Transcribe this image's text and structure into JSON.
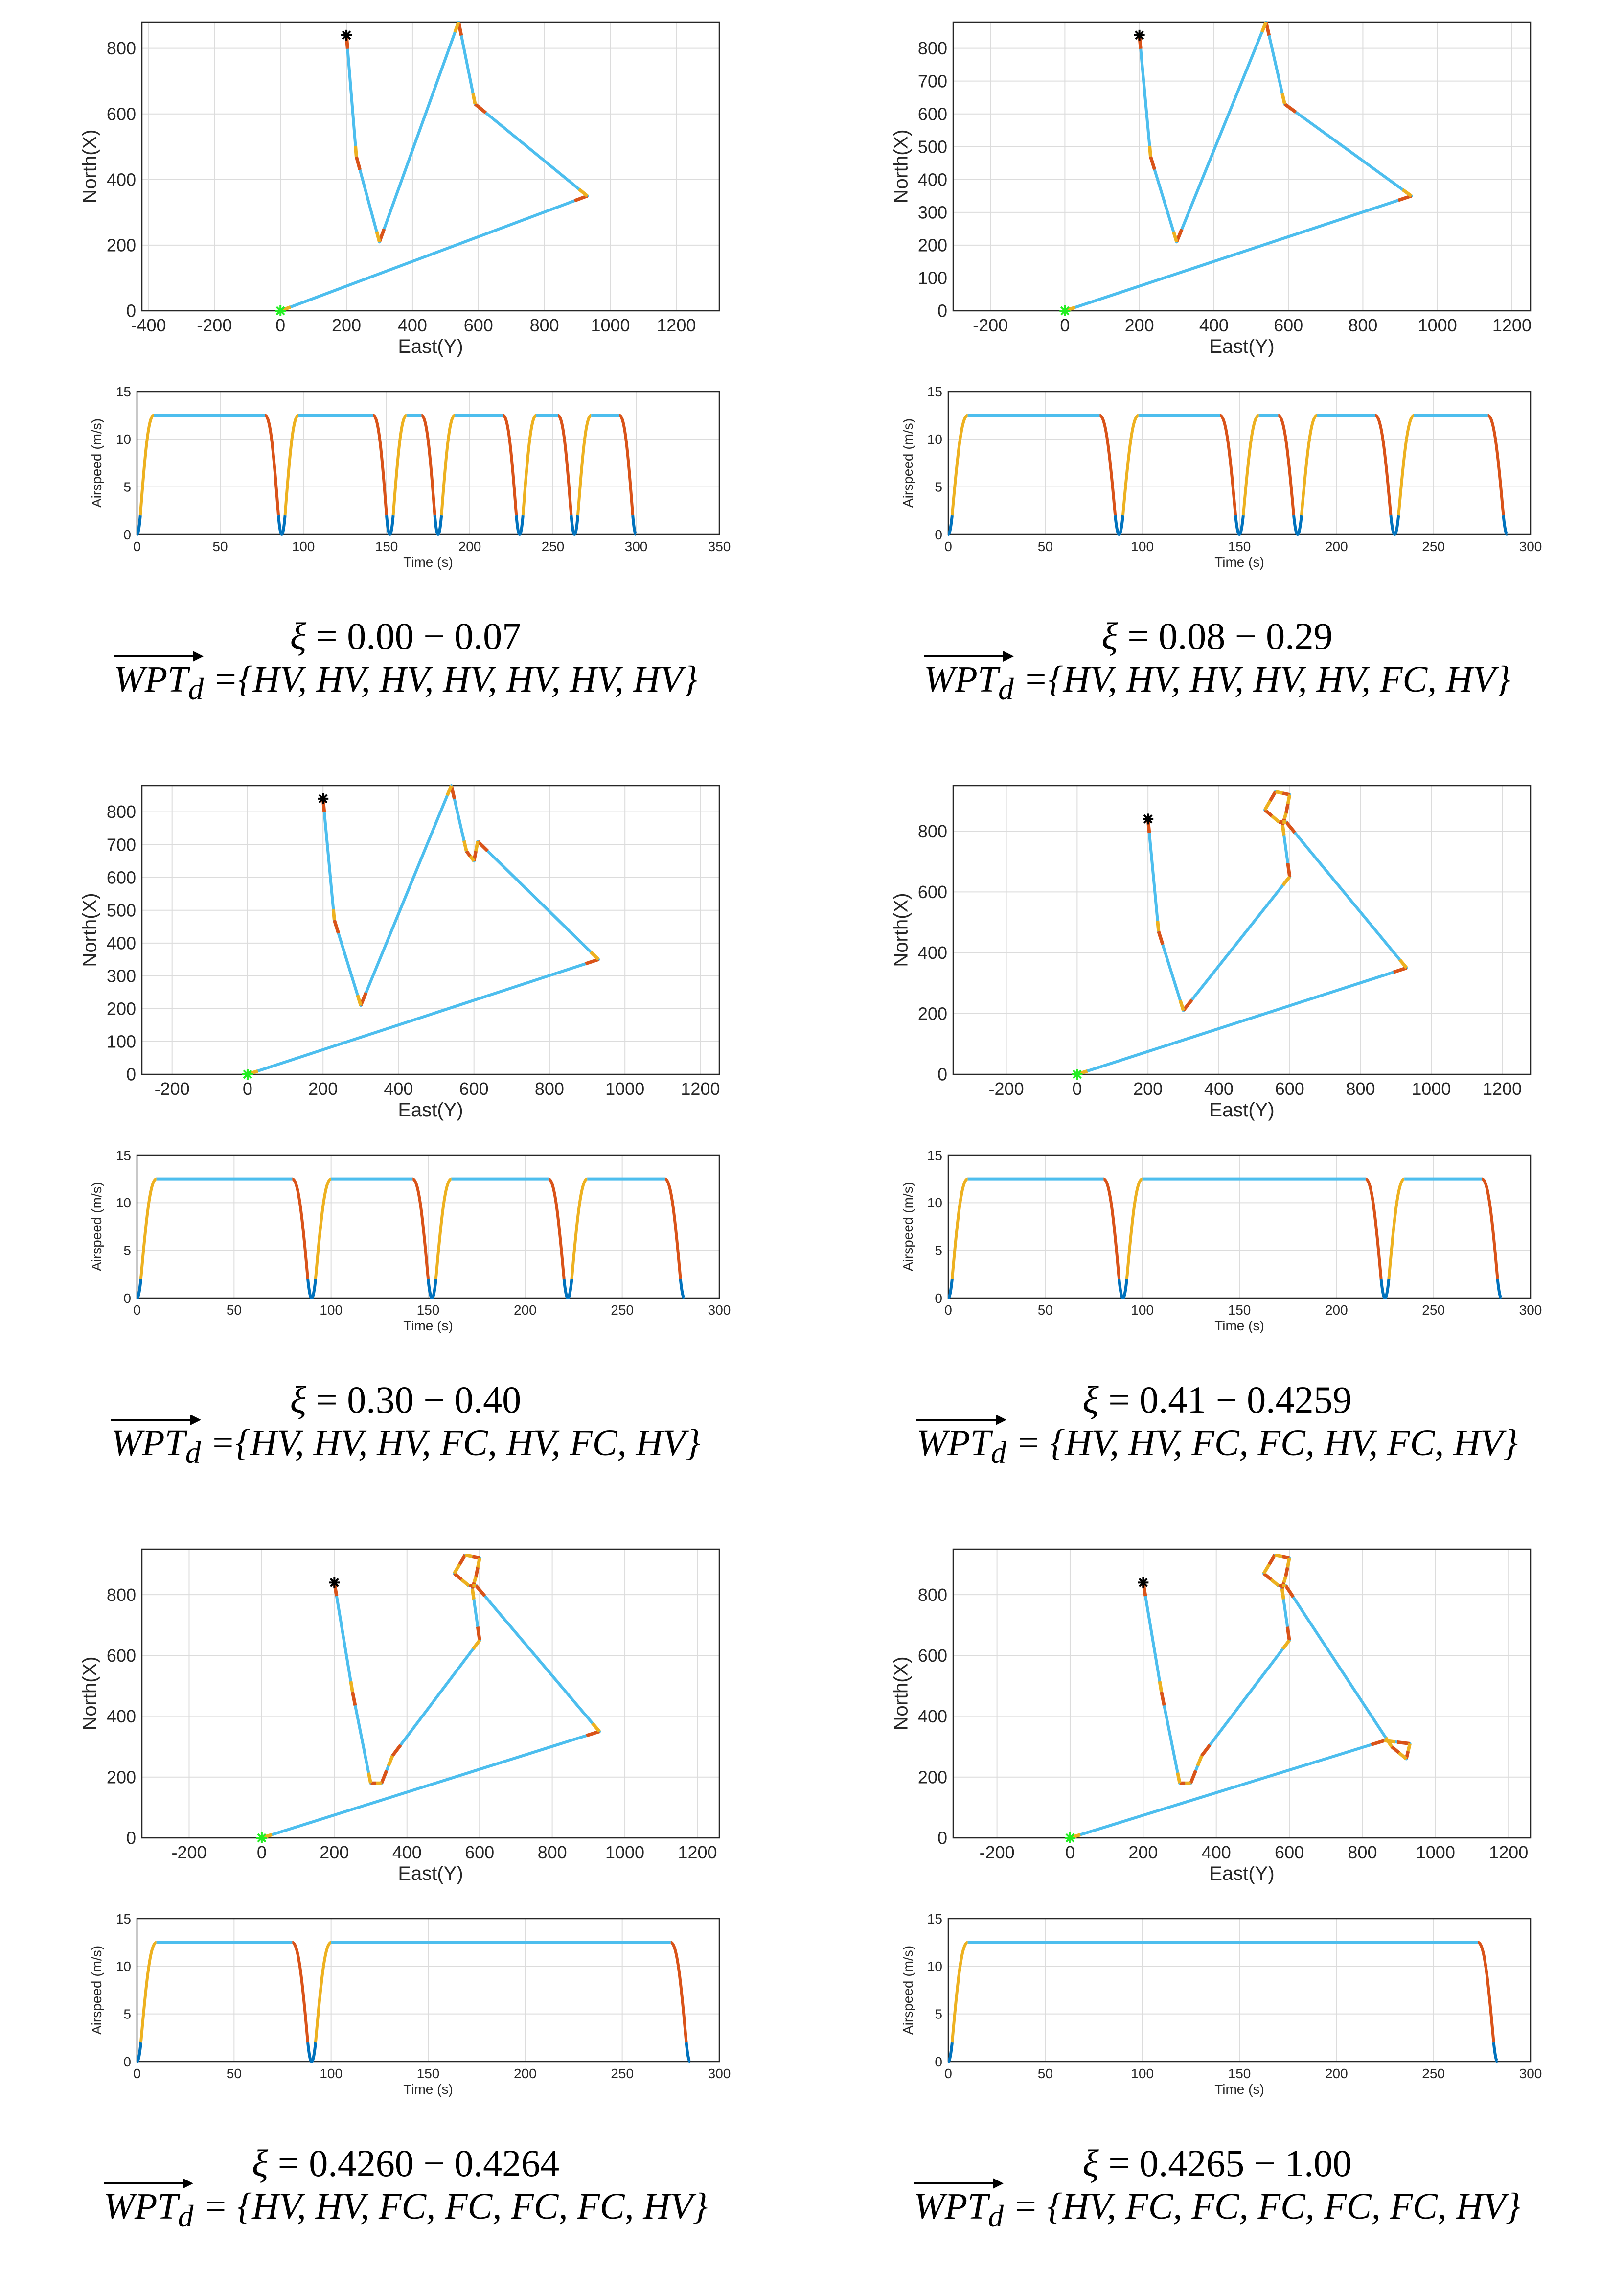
{
  "colors": {
    "path": "#4DBEEE",
    "accel": "#EDB120",
    "decel": "#D95319",
    "low": "#0072BD",
    "start": "#22EE22",
    "target": "#000000"
  },
  "chart_data": [
    {
      "type": "line",
      "caption": {
        "xi_symbol": "ξ",
        "xi_range": "= 0.00 − 0.07",
        "wpt_base": "WPT",
        "wpt_sub": "d",
        "wpt_value": "={HV, HV, HV, HV, HV, HV, HV}"
      },
      "track": {
        "xlabel": "East(Y)",
        "ylabel": "North(X)",
        "xlim": [
          -420,
          1330
        ],
        "ylim": [
          0,
          880
        ],
        "xticks": [
          -400,
          -200,
          0,
          200,
          400,
          600,
          800,
          1000,
          1200
        ],
        "yticks": [
          0,
          200,
          400,
          600,
          800
        ],
        "path": [
          [
            0,
            0
          ],
          [
            930,
            350
          ],
          [
            590,
            630
          ],
          [
            540,
            880
          ],
          [
            300,
            210
          ],
          [
            230,
            470
          ],
          [
            200,
            840
          ]
        ],
        "start": [
          0,
          0
        ],
        "target": [
          200,
          840
        ]
      },
      "speed": {
        "xlabel": "Time (s)",
        "ylabel": "Airspeed (m/s)",
        "xlim": [
          0,
          350
        ],
        "ylim": [
          0,
          15
        ],
        "xticks": [
          0,
          50,
          100,
          150,
          200,
          250,
          300,
          350
        ],
        "yticks": [
          0,
          5,
          10,
          15
        ],
        "cruise": 12.5,
        "stops": [
          0,
          87,
          152,
          181,
          230,
          263,
          300
        ]
      }
    },
    {
      "type": "line",
      "caption": {
        "xi_symbol": "ξ",
        "xi_range": "= 0.08 − 0.29",
        "wpt_base": "WPT",
        "wpt_sub": "d",
        "wpt_value": "={HV, HV, HV, HV, HV, FC, HV}"
      },
      "track": {
        "xlabel": "East(Y)",
        "ylabel": "North(X)",
        "xlim": [
          -300,
          1250
        ],
        "ylim": [
          0,
          880
        ],
        "xticks": [
          -200,
          0,
          200,
          400,
          600,
          800,
          1000,
          1200
        ],
        "yticks": [
          0,
          100,
          200,
          300,
          400,
          500,
          600,
          700,
          800
        ],
        "path": [
          [
            0,
            0
          ],
          [
            930,
            350
          ],
          [
            590,
            630
          ],
          [
            540,
            880
          ],
          [
            300,
            210
          ],
          [
            230,
            470
          ],
          [
            200,
            840
          ]
        ],
        "start": [
          0,
          0
        ],
        "target": [
          200,
          840
        ]
      },
      "speed": {
        "xlabel": "Time (s)",
        "ylabel": "Airspeed (m/s)",
        "xlim": [
          0,
          300
        ],
        "ylim": [
          0,
          15
        ],
        "xticks": [
          0,
          50,
          100,
          150,
          200,
          250,
          300
        ],
        "yticks": [
          0,
          5,
          10,
          15
        ],
        "cruise": 12.5,
        "stops": [
          0,
          88,
          150,
          180,
          230,
          288
        ]
      }
    },
    {
      "type": "line",
      "caption": {
        "xi_symbol": "ξ",
        "xi_range": "= 0.30 − 0.40",
        "wpt_base": "WPT",
        "wpt_sub": "d",
        "wpt_value": "={HV, HV, HV, FC, HV, FC, HV}"
      },
      "track": {
        "xlabel": "East(Y)",
        "ylabel": "North(X)",
        "xlim": [
          -280,
          1250
        ],
        "ylim": [
          0,
          880
        ],
        "xticks": [
          -200,
          0,
          200,
          400,
          600,
          800,
          1000,
          1200
        ],
        "yticks": [
          0,
          100,
          200,
          300,
          400,
          500,
          600,
          700,
          800
        ],
        "path": [
          [
            0,
            0
          ],
          [
            930,
            350
          ],
          [
            610,
            710
          ],
          [
            600,
            650
          ],
          [
            580,
            680
          ],
          [
            540,
            880
          ],
          [
            300,
            210
          ],
          [
            230,
            470
          ],
          [
            200,
            840
          ]
        ],
        "start": [
          0,
          0
        ],
        "target": [
          200,
          840
        ]
      },
      "speed": {
        "xlabel": "Time (s)",
        "ylabel": "Airspeed (m/s)",
        "xlim": [
          0,
          300
        ],
        "ylim": [
          0,
          15
        ],
        "xticks": [
          0,
          50,
          100,
          150,
          200,
          250,
          300
        ],
        "yticks": [
          0,
          5,
          10,
          15
        ],
        "cruise": 12.5,
        "stops": [
          0,
          90,
          152,
          222,
          282
        ]
      }
    },
    {
      "type": "line",
      "caption": {
        "xi_symbol": "ξ",
        "xi_range": "= 0.41 − 0.4259",
        "wpt_base": "WPT",
        "wpt_sub": "d",
        "wpt_value": "= {HV, HV, FC, FC, HV, FC, HV}"
      },
      "track": {
        "xlabel": "East(Y)",
        "ylabel": "North(X)",
        "xlim": [
          -350,
          1280
        ],
        "ylim": [
          0,
          950
        ],
        "xticks": [
          -200,
          0,
          200,
          400,
          600,
          800,
          1000,
          1200
        ],
        "yticks": [
          0,
          200,
          400,
          600,
          800
        ],
        "path": [
          [
            0,
            0
          ],
          [
            930,
            350
          ],
          [
            590,
            830
          ],
          [
            570,
            830
          ],
          [
            530,
            870
          ],
          [
            560,
            930
          ],
          [
            600,
            920
          ],
          [
            590,
            860
          ],
          [
            580,
            820
          ],
          [
            600,
            650
          ],
          [
            300,
            210
          ],
          [
            230,
            470
          ],
          [
            200,
            840
          ]
        ],
        "start": [
          0,
          0
        ],
        "target": [
          200,
          840
        ]
      },
      "speed": {
        "xlabel": "Time (s)",
        "ylabel": "Airspeed (m/s)",
        "xlim": [
          0,
          300
        ],
        "ylim": [
          0,
          15
        ],
        "xticks": [
          0,
          50,
          100,
          150,
          200,
          250,
          300
        ],
        "yticks": [
          0,
          5,
          10,
          15
        ],
        "cruise": 12.5,
        "stops": [
          0,
          90,
          225,
          285
        ]
      }
    },
    {
      "type": "line",
      "caption": {
        "xi_symbol": "ξ",
        "xi_range": "= 0.4260 − 0.4264",
        "wpt_base": "WPT",
        "wpt_sub": "d",
        "wpt_value": "= {HV, HV, FC, FC, FC, FC, HV}"
      },
      "track": {
        "xlabel": "East(Y)",
        "ylabel": "North(X)",
        "xlim": [
          -330,
          1260
        ],
        "ylim": [
          0,
          950
        ],
        "xticks": [
          -200,
          0,
          200,
          400,
          600,
          800,
          1000,
          1200
        ],
        "yticks": [
          0,
          200,
          400,
          600,
          800
        ],
        "path": [
          [
            0,
            0
          ],
          [
            930,
            350
          ],
          [
            590,
            830
          ],
          [
            570,
            830
          ],
          [
            530,
            870
          ],
          [
            560,
            930
          ],
          [
            600,
            920
          ],
          [
            590,
            860
          ],
          [
            580,
            820
          ],
          [
            600,
            650
          ],
          [
            360,
            270
          ],
          [
            330,
            180
          ],
          [
            300,
            180
          ],
          [
            250,
            480
          ],
          [
            200,
            840
          ]
        ],
        "start": [
          0,
          0
        ],
        "target": [
          200,
          840
        ]
      },
      "speed": {
        "xlabel": "Time (s)",
        "ylabel": "Airspeed (m/s)",
        "xlim": [
          0,
          300
        ],
        "ylim": [
          0,
          15
        ],
        "xticks": [
          0,
          50,
          100,
          150,
          200,
          250,
          300
        ],
        "yticks": [
          0,
          5,
          10,
          15
        ],
        "cruise": 12.5,
        "stops": [
          0,
          90,
          285
        ]
      }
    },
    {
      "type": "line",
      "caption": {
        "xi_symbol": "ξ",
        "xi_range": "= 0.4265 − 1.00",
        "wpt_base": "WPT",
        "wpt_sub": "d",
        "wpt_value": "= {HV, FC, FC, FC, FC, FC, HV}"
      },
      "track": {
        "xlabel": "East(Y)",
        "ylabel": "North(X)",
        "xlim": [
          -320,
          1260
        ],
        "ylim": [
          0,
          950
        ],
        "xticks": [
          -200,
          0,
          200,
          400,
          600,
          800,
          1000,
          1200
        ],
        "yticks": [
          0,
          200,
          400,
          600,
          800
        ],
        "path": [
          [
            0,
            0
          ],
          [
            860,
            320
          ],
          [
            930,
            310
          ],
          [
            920,
            260
          ],
          [
            880,
            300
          ],
          [
            590,
            830
          ],
          [
            570,
            830
          ],
          [
            530,
            870
          ],
          [
            560,
            930
          ],
          [
            600,
            920
          ],
          [
            590,
            860
          ],
          [
            580,
            820
          ],
          [
            600,
            650
          ],
          [
            360,
            270
          ],
          [
            330,
            180
          ],
          [
            300,
            180
          ],
          [
            250,
            480
          ],
          [
            200,
            840
          ]
        ],
        "start": [
          0,
          0
        ],
        "target": [
          200,
          840
        ]
      },
      "speed": {
        "xlabel": "Time (s)",
        "ylabel": "Airspeed (m/s)",
        "xlim": [
          0,
          300
        ],
        "ylim": [
          0,
          15
        ],
        "xticks": [
          0,
          50,
          100,
          150,
          200,
          250,
          300
        ],
        "yticks": [
          0,
          5,
          10,
          15
        ],
        "cruise": 12.5,
        "stops": [
          0,
          283
        ]
      }
    }
  ]
}
